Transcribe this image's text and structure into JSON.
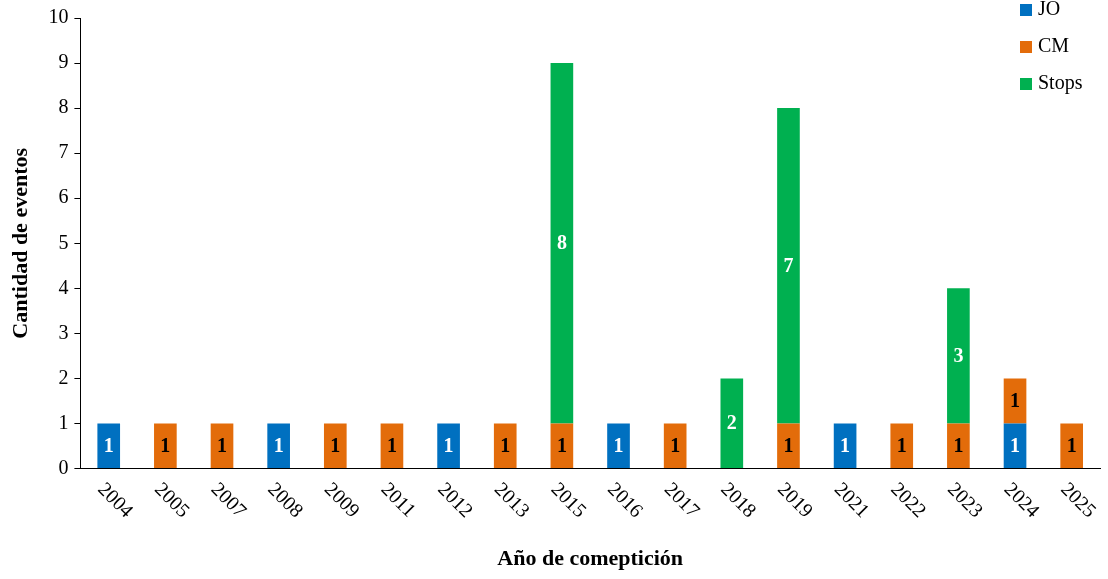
{
  "chart_data": {
    "type": "bar",
    "stacked": true,
    "xlabel": "Año de comeptición",
    "ylabel": "Cantidad de eventos",
    "categories": [
      "2004",
      "2005",
      "2007",
      "2008",
      "2009",
      "2011",
      "2012",
      "2013",
      "2015",
      "2016",
      "2017",
      "2018",
      "2019",
      "2021",
      "2022",
      "2023",
      "2024",
      "2025"
    ],
    "series": [
      {
        "name": "JO",
        "color": "#0070c0",
        "values": [
          1,
          null,
          null,
          1,
          null,
          null,
          1,
          null,
          null,
          1,
          null,
          null,
          null,
          1,
          null,
          null,
          1,
          null
        ]
      },
      {
        "name": "CM",
        "color": "#e36c0a",
        "values": [
          null,
          1,
          1,
          null,
          1,
          1,
          null,
          1,
          1,
          null,
          1,
          null,
          1,
          null,
          1,
          1,
          1,
          1
        ]
      },
      {
        "name": "Stops",
        "color": "#00b050",
        "values": [
          null,
          null,
          null,
          null,
          null,
          null,
          null,
          null,
          8,
          null,
          null,
          2,
          7,
          null,
          null,
          3,
          null,
          null
        ]
      }
    ],
    "ylim": [
      0,
      10
    ],
    "yticks": [
      0,
      1,
      2,
      3,
      4,
      5,
      6,
      7,
      8,
      9,
      10
    ],
    "grid": false,
    "legend": "top right",
    "data_labels": true
  }
}
